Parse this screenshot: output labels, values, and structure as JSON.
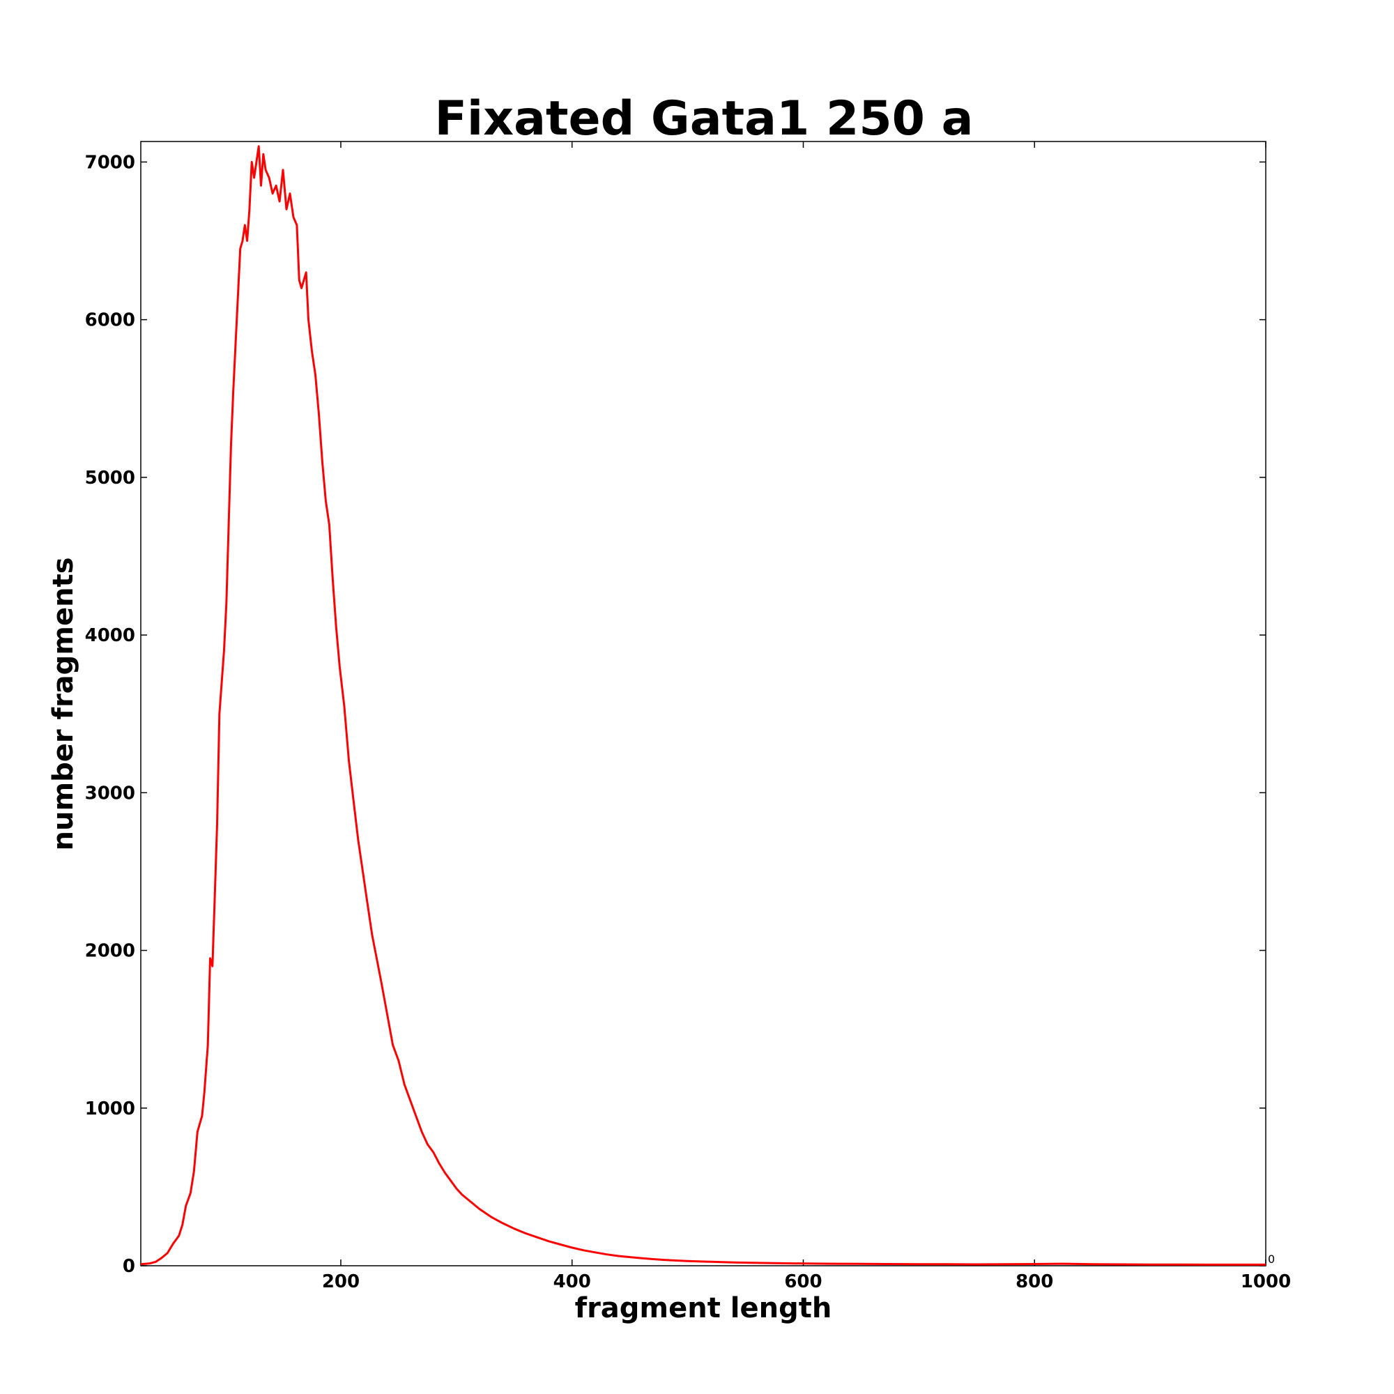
{
  "chart_data": {
    "type": "line",
    "title": "Fixated Gata1 250 a",
    "xlabel": "fragment length",
    "ylabel": "number fragments",
    "xlim": [
      27,
      1000
    ],
    "ylim": [
      0,
      7130
    ],
    "xticks": [
      200,
      400,
      600,
      800,
      1000
    ],
    "yticks": [
      0,
      1000,
      2000,
      3000,
      4000,
      5000,
      6000,
      7000
    ],
    "corner_label": "0",
    "grid": false,
    "legend": "none",
    "series": [
      {
        "color": "#ff0000",
        "points": [
          [
            27,
            10
          ],
          [
            35,
            15
          ],
          [
            40,
            25
          ],
          [
            45,
            50
          ],
          [
            50,
            80
          ],
          [
            55,
            140
          ],
          [
            60,
            190
          ],
          [
            63,
            260
          ],
          [
            66,
            380
          ],
          [
            70,
            460
          ],
          [
            73,
            600
          ],
          [
            76,
            850
          ],
          [
            80,
            950
          ],
          [
            82,
            1100
          ],
          [
            85,
            1400
          ],
          [
            87,
            1950
          ],
          [
            89,
            1900
          ],
          [
            91,
            2350
          ],
          [
            93,
            2800
          ],
          [
            95,
            3500
          ],
          [
            97,
            3700
          ],
          [
            99,
            3900
          ],
          [
            101,
            4200
          ],
          [
            103,
            4700
          ],
          [
            105,
            5200
          ],
          [
            107,
            5550
          ],
          [
            110,
            6000
          ],
          [
            113,
            6450
          ],
          [
            115,
            6500
          ],
          [
            117,
            6600
          ],
          [
            119,
            6500
          ],
          [
            121,
            6700
          ],
          [
            123,
            7000
          ],
          [
            125,
            6900
          ],
          [
            127,
            7000
          ],
          [
            129,
            7100
          ],
          [
            131,
            6850
          ],
          [
            133,
            7050
          ],
          [
            135,
            6950
          ],
          [
            138,
            6900
          ],
          [
            141,
            6800
          ],
          [
            144,
            6850
          ],
          [
            147,
            6750
          ],
          [
            150,
            6950
          ],
          [
            153,
            6700
          ],
          [
            156,
            6800
          ],
          [
            159,
            6650
          ],
          [
            162,
            6600
          ],
          [
            164,
            6250
          ],
          [
            166,
            6200
          ],
          [
            168,
            6250
          ],
          [
            170,
            6300
          ],
          [
            172,
            6000
          ],
          [
            175,
            5800
          ],
          [
            178,
            5650
          ],
          [
            181,
            5400
          ],
          [
            184,
            5100
          ],
          [
            187,
            4850
          ],
          [
            190,
            4700
          ],
          [
            193,
            4350
          ],
          [
            196,
            4050
          ],
          [
            199,
            3800
          ],
          [
            203,
            3550
          ],
          [
            207,
            3200
          ],
          [
            211,
            2950
          ],
          [
            215,
            2700
          ],
          [
            219,
            2500
          ],
          [
            223,
            2300
          ],
          [
            227,
            2100
          ],
          [
            231,
            1950
          ],
          [
            235,
            1800
          ],
          [
            240,
            1600
          ],
          [
            245,
            1400
          ],
          [
            250,
            1300
          ],
          [
            255,
            1150
          ],
          [
            260,
            1050
          ],
          [
            265,
            950
          ],
          [
            270,
            850
          ],
          [
            275,
            770
          ],
          [
            280,
            720
          ],
          [
            285,
            650
          ],
          [
            290,
            590
          ],
          [
            295,
            540
          ],
          [
            300,
            490
          ],
          [
            305,
            450
          ],
          [
            310,
            420
          ],
          [
            320,
            360
          ],
          [
            330,
            310
          ],
          [
            340,
            270
          ],
          [
            350,
            235
          ],
          [
            360,
            205
          ],
          [
            370,
            180
          ],
          [
            380,
            155
          ],
          [
            390,
            135
          ],
          [
            400,
            115
          ],
          [
            410,
            98
          ],
          [
            420,
            85
          ],
          [
            430,
            72
          ],
          [
            440,
            62
          ],
          [
            450,
            55
          ],
          [
            460,
            48
          ],
          [
            470,
            42
          ],
          [
            480,
            37
          ],
          [
            490,
            33
          ],
          [
            500,
            30
          ],
          [
            520,
            25
          ],
          [
            540,
            21
          ],
          [
            560,
            18
          ],
          [
            580,
            16
          ],
          [
            600,
            14
          ],
          [
            625,
            13
          ],
          [
            650,
            12
          ],
          [
            675,
            11
          ],
          [
            700,
            10
          ],
          [
            725,
            10
          ],
          [
            750,
            9
          ],
          [
            775,
            10
          ],
          [
            800,
            11
          ],
          [
            825,
            13
          ],
          [
            850,
            10
          ],
          [
            875,
            9
          ],
          [
            900,
            8
          ],
          [
            925,
            8
          ],
          [
            950,
            7
          ],
          [
            975,
            7
          ],
          [
            1000,
            7
          ]
        ]
      }
    ]
  }
}
